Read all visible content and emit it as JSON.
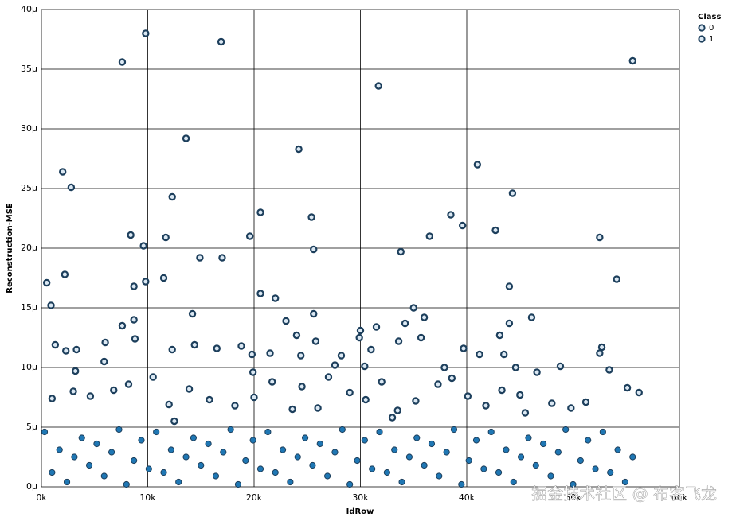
{
  "chart_data": {
    "type": "scatter",
    "x_label": "IdRow",
    "y_label": "Reconstruction-MSE",
    "legend_title": "Class",
    "legend": "top-right",
    "grid": true,
    "watermark": "掘金技术社区 @ 布客飞龙",
    "xlim": [
      0,
      60000
    ],
    "ylim": [
      0,
      40
    ],
    "xticks": [
      {
        "value": 0,
        "label": "0k"
      },
      {
        "value": 10000,
        "label": "10k"
      },
      {
        "value": 20000,
        "label": "20k"
      },
      {
        "value": 30000,
        "label": "30k"
      },
      {
        "value": 40000,
        "label": "40k"
      },
      {
        "value": 50000,
        "label": "50k"
      },
      {
        "value": 60000,
        "label": "60k"
      }
    ],
    "yticks": [
      {
        "value": 0,
        "label": "0μ"
      },
      {
        "value": 5,
        "label": "5μ"
      },
      {
        "value": 10,
        "label": "10μ"
      },
      {
        "value": 15,
        "label": "15μ"
      },
      {
        "value": 20,
        "label": "20μ"
      },
      {
        "value": 25,
        "label": "25μ"
      },
      {
        "value": 30,
        "label": "30μ"
      },
      {
        "value": 35,
        "label": "35μ"
      },
      {
        "value": 40,
        "label": "40μ"
      }
    ],
    "series": [
      {
        "name": "0",
        "color": "#1f77b4",
        "x": [
          500,
          900,
          1300,
          2000,
          2200,
          2800,
          2300,
          3300,
          3200,
          7600,
          9800,
          16900,
          13600,
          12300,
          8400,
          9600,
          11700,
          11500,
          9800,
          8700,
          14900,
          17000,
          14200,
          8700,
          7600,
          8800,
          6000,
          5900,
          12300,
          14400,
          16500,
          18800,
          19800,
          24200,
          20600,
          25400,
          25600,
          19600,
          20600,
          22000,
          23000,
          24000,
          25600,
          25800,
          24400,
          21500,
          31700,
          33800,
          30000,
          31500,
          34200,
          35000,
          36000,
          36500,
          38500,
          39600,
          41000,
          42700,
          44300,
          44000,
          44000,
          43100,
          39700,
          41200,
          35700,
          33600,
          31000,
          29900,
          30400,
          37900,
          43500,
          46100,
          48800,
          52500,
          54100,
          55600,
          52700,
          52500,
          44600,
          27600,
          28200,
          1000,
          3000,
          4600,
          6800,
          8200,
          10500,
          12000,
          13900,
          15800,
          18200,
          19900,
          21700,
          23600,
          24500,
          26000,
          27000,
          29000,
          30500,
          32000,
          33500,
          35200,
          37300,
          38600,
          40100,
          41800,
          43300,
          45000,
          46600,
          48000,
          49800,
          51200,
          53400,
          55100,
          56200,
          300,
          1000,
          1700,
          2400,
          3100,
          3800,
          4500,
          5200,
          5900,
          6600,
          7300,
          8000,
          8700,
          9400,
          10100,
          10800,
          11500,
          12200,
          12900,
          13600,
          14300,
          15000,
          15700,
          16400,
          17100,
          17800,
          18500,
          19200,
          19900,
          20600,
          21300,
          22000,
          22700,
          23400,
          24100,
          24800,
          25500,
          26200,
          26900,
          27600,
          28300,
          29000,
          29700,
          30400,
          31100,
          31800,
          32500,
          33200,
          33900,
          34600,
          35300,
          36000,
          36700,
          37400,
          38100,
          38800,
          39500,
          40200,
          40900,
          41600,
          42300,
          43000,
          43700,
          44400,
          45100,
          45800,
          46500,
          47200,
          47900,
          48600,
          49300,
          50000,
          50700,
          51400,
          52100,
          52800,
          53500,
          54200,
          54900,
          55600
        ],
        "values": [
          17.1,
          15.2,
          11.9,
          26.4,
          17.8,
          25.1,
          11.4,
          11.5,
          9.7,
          35.6,
          38.0,
          37.3,
          29.2,
          24.3,
          21.1,
          20.2,
          20.9,
          17.5,
          17.2,
          16.8,
          19.2,
          19.2,
          14.5,
          14.0,
          13.5,
          12.4,
          12.1,
          10.5,
          11.5,
          11.9,
          11.6,
          11.8,
          11.1,
          28.3,
          23.0,
          22.6,
          19.9,
          21.0,
          16.2,
          15.8,
          13.9,
          12.7,
          14.5,
          12.2,
          11.0,
          11.2,
          33.6,
          19.7,
          13.1,
          13.4,
          13.7,
          15.0,
          14.2,
          21.0,
          22.8,
          21.9,
          27.0,
          21.5,
          24.6,
          16.8,
          13.7,
          12.7,
          11.6,
          11.1,
          12.5,
          12.2,
          11.5,
          12.5,
          10.1,
          10.0,
          11.1,
          14.2,
          10.1,
          20.9,
          17.4,
          35.7,
          11.7,
          11.2,
          10.0,
          10.2,
          11.0,
          7.4,
          8.0,
          7.6,
          8.1,
          8.6,
          9.2,
          6.9,
          8.2,
          7.3,
          6.8,
          9.6,
          8.8,
          6.5,
          8.4,
          6.6,
          9.2,
          7.9,
          7.3,
          8.8,
          6.4,
          7.2,
          8.6,
          9.1,
          7.6,
          6.8,
          8.1,
          7.7,
          9.6,
          7.0,
          6.6,
          7.1,
          9.8,
          8.3,
          7.9,
          4.6,
          1.2,
          3.1,
          0.4,
          2.5,
          4.1,
          1.8,
          3.6,
          0.9,
          2.9,
          4.8,
          0.2,
          2.2,
          3.9,
          1.5,
          4.6,
          1.2,
          3.1,
          0.4,
          2.5,
          4.1,
          1.8,
          3.6,
          0.9,
          2.9,
          4.8,
          0.2,
          2.2,
          3.9,
          1.5,
          4.6,
          1.2,
          3.1,
          0.4,
          2.5,
          4.1,
          1.8,
          3.6,
          0.9,
          2.9,
          4.8,
          0.2,
          2.2,
          3.9,
          1.5,
          4.6,
          1.2,
          3.1,
          0.4,
          2.5,
          4.1,
          1.8,
          3.6,
          0.9,
          2.9,
          4.8,
          0.2,
          2.2,
          3.9,
          1.5,
          4.6,
          1.2,
          3.1,
          0.4,
          2.5,
          4.1,
          1.8,
          3.6,
          0.9,
          2.9,
          4.8,
          0.2,
          2.2,
          3.9,
          1.5,
          4.6,
          1.2,
          3.1,
          0.4,
          2.5
        ]
      },
      {
        "name": "1",
        "color": "#1f77b4",
        "x": [
          20000,
          33000,
          45500,
          12500
        ],
        "values": [
          7.5,
          5.8,
          6.2,
          5.5
        ]
      }
    ]
  }
}
